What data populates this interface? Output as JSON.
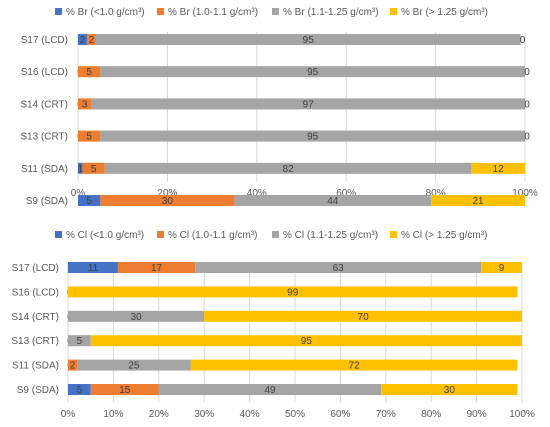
{
  "chart_data": [
    {
      "type": "bar",
      "orientation": "horizontal",
      "stacked": "percent",
      "legend_position": "top",
      "grid": true,
      "xlim": [
        0,
        100
      ],
      "x_ticks": [
        "0%",
        "20%",
        "40%",
        "60%",
        "80%",
        "100%"
      ],
      "categories": [
        "S17 (LCD)",
        "S16 (LCD)",
        "S14 (CRT)",
        "S13 (CRT)",
        "S11 (SDA)",
        "S9 (SDA)"
      ],
      "series": [
        {
          "name": "% Br (<1.0 g/cm³)",
          "color": "#4472C4",
          "values": [
            2,
            0,
            0,
            0,
            1,
            5
          ]
        },
        {
          "name": "% Br (1.0-1.1 g/cm³)",
          "color": "#ED7D31",
          "values": [
            2,
            5,
            3,
            5,
            5,
            30
          ]
        },
        {
          "name": "% Br (1.1-1.25 g/cm³)",
          "color": "#A5A5A5",
          "values": [
            95,
            95,
            97,
            95,
            82,
            44
          ]
        },
        {
          "name": "% Br (> 1.25 g/cm³)",
          "color": "#FFC000",
          "values": [
            0,
            0,
            0,
            0,
            12,
            21
          ]
        }
      ]
    },
    {
      "type": "bar",
      "orientation": "horizontal",
      "stacked": "percent",
      "legend_position": "top",
      "grid": true,
      "xlim": [
        0,
        100
      ],
      "x_ticks": [
        "0%",
        "10%",
        "20%",
        "30%",
        "40%",
        "50%",
        "60%",
        "70%",
        "80%",
        "90%",
        "100%"
      ],
      "categories": [
        "S17 (LCD)",
        "S16 (LCD)",
        "S14 (CRT)",
        "S13 (CRT)",
        "S11 (SDA)",
        "S9 (SDA)"
      ],
      "series": [
        {
          "name": "% Cl (<1.0 g/cm³)",
          "color": "#4472C4",
          "values": [
            11,
            0,
            0,
            0,
            0,
            5
          ]
        },
        {
          "name": "% Cl (1.0-1.1 g/cm³)",
          "color": "#ED7D31",
          "values": [
            17,
            0,
            0,
            0,
            2,
            15
          ]
        },
        {
          "name": "% Cl (1.1-1.25 g/cm³)",
          "color": "#A5A5A5",
          "values": [
            63,
            0,
            30,
            5,
            25,
            49
          ]
        },
        {
          "name": "% Cl (> 1.25 g/cm³)",
          "color": "#FFC000",
          "values": [
            9,
            99,
            70,
            95,
            72,
            30
          ]
        }
      ]
    }
  ]
}
